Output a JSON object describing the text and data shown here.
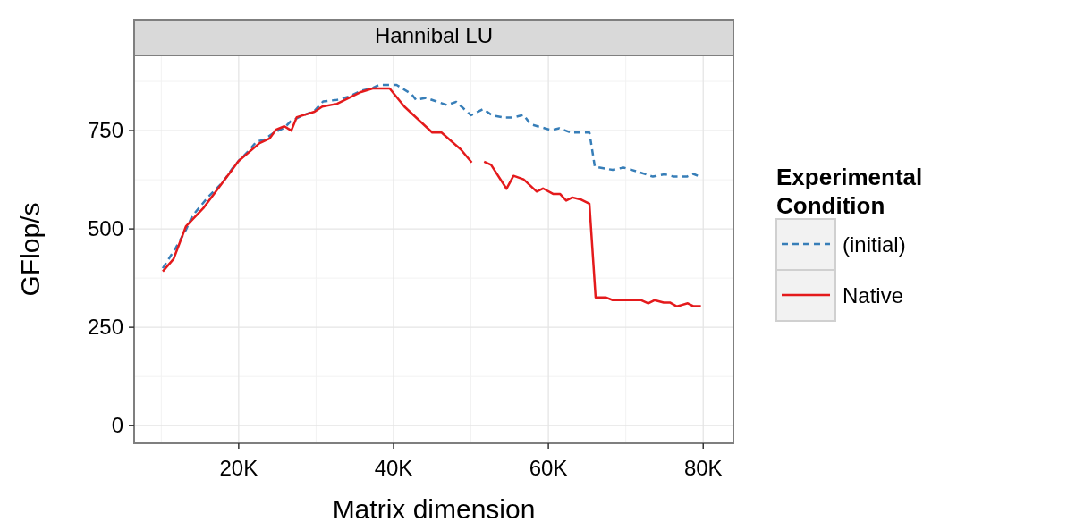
{
  "chart_data": {
    "type": "line",
    "title": "Hannibal LU",
    "xlabel": "Matrix dimension",
    "ylabel": "GFlop/s",
    "legend_title": "Experimental Condition",
    "legend": "right",
    "grid": true,
    "xlim": [
      6500,
      83900
    ],
    "xticks": [
      {
        "value": 20000,
        "label": "20K"
      },
      {
        "value": 40000,
        "label": "40K"
      },
      {
        "value": 60000,
        "label": "60K"
      },
      {
        "value": 80000,
        "label": "80K"
      }
    ],
    "ylim": [
      -45,
      941
    ],
    "yticks": [
      0,
      250,
      500,
      750
    ],
    "series": [
      {
        "name": "(initial)",
        "color": "#377eb8",
        "line_style": "dashed",
        "x": [
          10200,
          11900,
          13200,
          14000,
          16100,
          18000,
          19200,
          20000,
          21300,
          22300,
          23200,
          24600,
          25900,
          26700,
          28000,
          29800,
          30900,
          32700,
          34200,
          35800,
          37300,
          38100,
          40400,
          42300,
          42900,
          44200,
          46900,
          48100,
          50000,
          51600,
          52700,
          54300,
          55400,
          56800,
          57700,
          60400,
          61400,
          62900,
          65300,
          66000,
          68300,
          69700,
          70800,
          73500,
          75000,
          76200,
          77900,
          78700,
          79300
        ],
        "values": [
          400,
          453,
          498,
          533,
          582,
          620,
          654,
          673,
          699,
          722,
          726,
          745,
          757,
          773,
          786,
          800,
          824,
          828,
          836,
          851,
          858,
          866,
          866,
          843,
          828,
          833,
          815,
          823,
          789,
          805,
          789,
          783,
          783,
          790,
          766,
          751,
          756,
          745,
          745,
          658,
          650,
          656,
          650,
          633,
          639,
          633,
          633,
          640,
          635
        ]
      },
      {
        "name": "Native",
        "color": "#e41a1c",
        "line_style": "solid",
        "x": [
          10200,
          11600,
          13200,
          15400,
          17700,
          20000,
          22700,
          24000,
          24800,
          25900,
          26800,
          27500,
          29800,
          30800,
          32700,
          35800,
          37300,
          39500,
          41400,
          45000,
          46200,
          48700,
          50100,
          50900,
          51700,
          52600,
          54600,
          55500,
          56800,
          58500,
          59300,
          60600,
          61500,
          62300,
          63100,
          64300,
          65300,
          66100,
          67400,
          68300,
          72000,
          72900,
          73700,
          74900,
          75700,
          76600,
          78000,
          78700,
          79700
        ],
        "values": [
          392,
          424,
          507,
          552,
          612,
          673,
          718,
          730,
          752,
          761,
          750,
          784,
          798,
          811,
          818,
          848,
          857,
          857,
          811,
          745,
          745,
          702,
          669,
          null,
          671,
          663,
          602,
          635,
          626,
          595,
          603,
          589,
          589,
          572,
          580,
          574,
          564,
          326,
          326,
          319,
          319,
          311,
          319,
          313,
          313,
          303,
          311,
          304,
          304
        ]
      }
    ]
  }
}
